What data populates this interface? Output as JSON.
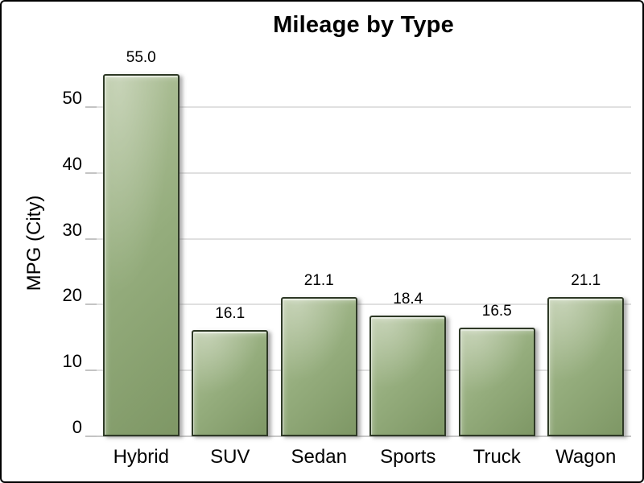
{
  "chart_data": {
    "type": "bar",
    "title": "Mileage by Type",
    "xlabel": "",
    "ylabel": "MPG (City)",
    "categories": [
      "Hybrid",
      "SUV",
      "Sedan",
      "Sports",
      "Truck",
      "Wagon"
    ],
    "values": [
      55.0,
      16.1,
      21.1,
      18.4,
      16.5,
      21.1
    ],
    "value_labels": [
      "55.0",
      "16.1",
      "21.1",
      "18.4",
      "16.5",
      "21.1"
    ],
    "yticks": [
      0,
      10,
      20,
      30,
      40,
      50
    ],
    "ylim": [
      0,
      58.7
    ],
    "grid": "horizontal-only",
    "legend": "none",
    "colors": {
      "bar_fill_mid": "#95ad7d",
      "bar_fill_light": "#b2c39c",
      "bar_fill_dark": "#7e9765",
      "bar_border": "#2e3926",
      "gridline": "#e0e0e0",
      "axis_baseline": "#c8c8c8",
      "tick_mark": "#c4c4c4",
      "text": "#000000",
      "frame_border": "#000000",
      "background": "#ffffff"
    }
  }
}
